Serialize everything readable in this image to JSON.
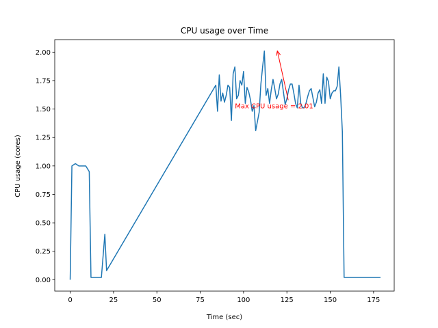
{
  "chart_data": {
    "type": "line",
    "title": "CPU usage over Time",
    "xlabel": "Time (sec)",
    "ylabel": "CPU usage (cores)",
    "xlim": [
      -8.9,
      186.9
    ],
    "ylim": [
      -0.1,
      2.11
    ],
    "xticks": [
      0,
      25,
      50,
      75,
      100,
      125,
      150,
      175
    ],
    "yticks": [
      0.0,
      0.25,
      0.5,
      0.75,
      1.0,
      1.25,
      1.5,
      1.75,
      2.0
    ],
    "xtick_labels": [
      "0",
      "25",
      "50",
      "75",
      "100",
      "125",
      "150",
      "175"
    ],
    "ytick_labels": [
      "0.00",
      "0.25",
      "0.50",
      "0.75",
      "1.00",
      "1.25",
      "1.50",
      "1.75",
      "2.00"
    ],
    "grid": false,
    "colors": {
      "line": "#1f77b4",
      "annotation": "#ff0000"
    },
    "series": [
      {
        "name": "CPU usage",
        "x": [
          0,
          1,
          2,
          3,
          4,
          5,
          6,
          7,
          8,
          9,
          11,
          12,
          13,
          18,
          20,
          21,
          84,
          85,
          86,
          87,
          88,
          89,
          90,
          91,
          92,
          93,
          94,
          95,
          96,
          97,
          98,
          99,
          100,
          101,
          102,
          103,
          104,
          105,
          106,
          107,
          108,
          109,
          110,
          111,
          112,
          113,
          114,
          115,
          116,
          117,
          118,
          119,
          120,
          121,
          122,
          123,
          124,
          125,
          126,
          127,
          128,
          129,
          130,
          131,
          132,
          133,
          134,
          135,
          136,
          137,
          138,
          139,
          140,
          141,
          142,
          143,
          144,
          145,
          146,
          147,
          148,
          149,
          150,
          151,
          152,
          153,
          154,
          155,
          156,
          157,
          158,
          159,
          160,
          161,
          162,
          163,
          164,
          165,
          166,
          167,
          168,
          169,
          170,
          171,
          172,
          173,
          174,
          175,
          176,
          177,
          178,
          179
        ],
        "y": [
          0.0,
          1.0,
          1.01,
          1.02,
          1.01,
          1.0,
          1.0,
          1.0,
          1.0,
          1.0,
          0.95,
          0.02,
          0.02,
          0.02,
          0.4,
          0.08,
          1.71,
          1.48,
          1.8,
          1.57,
          1.64,
          1.56,
          1.62,
          1.71,
          1.69,
          1.4,
          1.81,
          1.87,
          1.59,
          1.62,
          1.75,
          1.71,
          1.83,
          1.55,
          1.69,
          1.65,
          1.58,
          1.48,
          1.53,
          1.31,
          1.39,
          1.47,
          1.72,
          1.87,
          2.01,
          1.62,
          1.68,
          1.55,
          1.67,
          1.76,
          1.68,
          1.59,
          1.63,
          1.72,
          1.76,
          1.65,
          1.54,
          1.59,
          1.67,
          1.72,
          1.72,
          1.64,
          1.55,
          1.51,
          1.71,
          1.55,
          1.51,
          1.51,
          1.55,
          1.61,
          1.66,
          1.68,
          1.6,
          1.52,
          1.56,
          1.64,
          1.67,
          1.55,
          1.81,
          1.55,
          1.78,
          1.74,
          1.59,
          1.64,
          1.66,
          1.66,
          1.7,
          1.87,
          1.62,
          1.3,
          0.02,
          0.02,
          0.02,
          0.02,
          0.02,
          0.02,
          0.02,
          0.02,
          0.02,
          0.02,
          0.02,
          0.02,
          0.02,
          0.02,
          0.02,
          0.02,
          0.02,
          0.02,
          0.02,
          0.02,
          0.02,
          0.02
        ]
      }
    ],
    "annotation": {
      "text": "Max CPU usage = 2.01",
      "point": [
        119.5,
        2.01
      ],
      "text_pos": [
        95,
        1.53
      ]
    }
  }
}
